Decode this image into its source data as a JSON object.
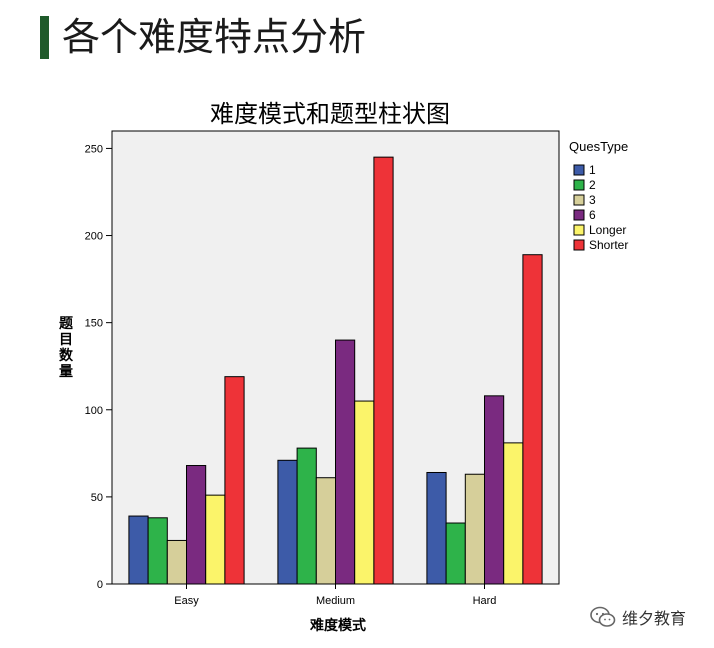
{
  "slide": {
    "title": "各个难度特点分析",
    "accent_color": "#1f5a2a"
  },
  "watermark": {
    "text": "维夕教育",
    "icon": "wechat-icon"
  },
  "chart_data": {
    "type": "bar",
    "title": "难度模式和题型柱状图",
    "xlabel": "难度模式",
    "ylabel": "题目数量",
    "categories": [
      "Easy",
      "Medium",
      "Hard"
    ],
    "ylim": [
      0,
      260
    ],
    "yticks": [
      0,
      50,
      100,
      150,
      200,
      250
    ],
    "legend_title": "QuesType",
    "legend_position": "right",
    "plot_background": "#f0f0f0",
    "grid": false,
    "series": [
      {
        "name": "1",
        "color": "#3d5ba8",
        "values": [
          39,
          71,
          64
        ]
      },
      {
        "name": "2",
        "color": "#2eb34a",
        "values": [
          38,
          78,
          35
        ]
      },
      {
        "name": "3",
        "color": "#d6cf9a",
        "values": [
          25,
          61,
          63
        ]
      },
      {
        "name": "6",
        "color": "#7a2a80",
        "values": [
          68,
          140,
          108
        ]
      },
      {
        "name": "Longer",
        "color": "#fbf46a",
        "values": [
          51,
          105,
          81
        ]
      },
      {
        "name": "Shorter",
        "color": "#ee3338",
        "values": [
          119,
          245,
          189
        ]
      }
    ]
  }
}
